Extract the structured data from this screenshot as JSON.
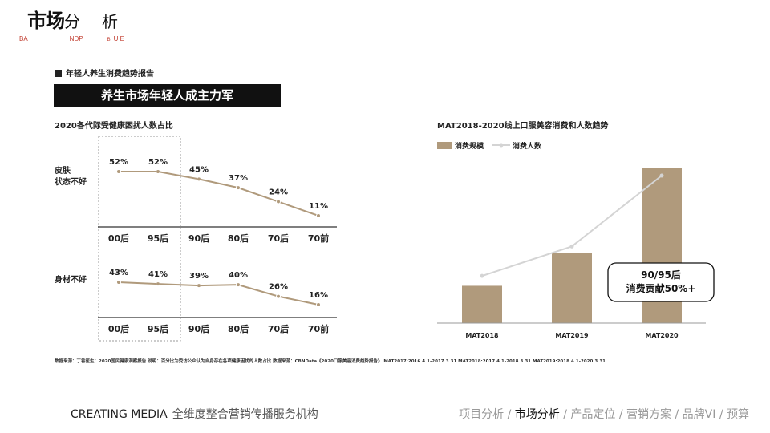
{
  "header": {
    "title_big": "市场",
    "title_small_1": "分",
    "title_small_2": "析",
    "bg_letters": [
      "BA",
      "NDP",
      "B",
      "U E"
    ]
  },
  "section_label": "年轻人养生消费趋势报告",
  "banner": "养生市场年轻人成主力军",
  "chart_data": [
    {
      "type": "line",
      "title": "2020各代际受健康困扰人数占比",
      "categories": [
        "00后",
        "95后",
        "90后",
        "80后",
        "70后",
        "70前"
      ],
      "series": [
        {
          "name": "皮肤\n状态不好",
          "label_lines": [
            "皮肤",
            "状态不好"
          ],
          "values": [
            52,
            52,
            45,
            37,
            24,
            11
          ],
          "labels": [
            "52%",
            "52%",
            "45%",
            "37%",
            "24%",
            "11%"
          ]
        },
        {
          "name": "身材不好",
          "label_lines": [
            "身材不好"
          ],
          "values": [
            43,
            41,
            39,
            40,
            26,
            16
          ],
          "labels": [
            "43%",
            "41%",
            "39%",
            "40%",
            "26%",
            "16%"
          ]
        }
      ],
      "highlight": [
        "00后",
        "95后"
      ],
      "color": "#b09a7c"
    },
    {
      "type": "bar",
      "title": "MAT2018-2020线上口服美容消费和人数趋势",
      "categories": [
        "MAT2018",
        "MAT2019",
        "MAT2020"
      ],
      "series": [
        {
          "name": "消费规模",
          "type": "bar",
          "values": [
            24,
            45,
            100
          ],
          "color": "#b09a7c"
        },
        {
          "name": "消费人数",
          "type": "line",
          "values": [
            32,
            52,
            100
          ],
          "color": "#d4d4d4"
        }
      ],
      "legend": "top-left",
      "annotation": [
        "90/95后",
        "消费贡献50%+"
      ]
    }
  ],
  "footnote": "数据来源：丁香医生：2020国民健康洞察报告  说明：百分比为受访公众认为自身存在各项健康困扰的人数占比  数据来源：CBNData《2020口服美容消费趋势报告》 MAT2017:2016.4.1-2017.3.31  MAT2018:2017.4.1-2018.3.31  MAT2019:2018.4.1-2020.3.31",
  "footer": {
    "brand": "CREATING MEDIA",
    "tagline": "全维度整合营销传播服务机构"
  },
  "nav": [
    {
      "label": "项目分析",
      "active": false
    },
    {
      "label": "市场分析",
      "active": true
    },
    {
      "label": "产品定位",
      "active": false
    },
    {
      "label": "营销方案",
      "active": false
    },
    {
      "label": "品牌VI",
      "active": false
    },
    {
      "label": "预算",
      "active": false
    }
  ]
}
